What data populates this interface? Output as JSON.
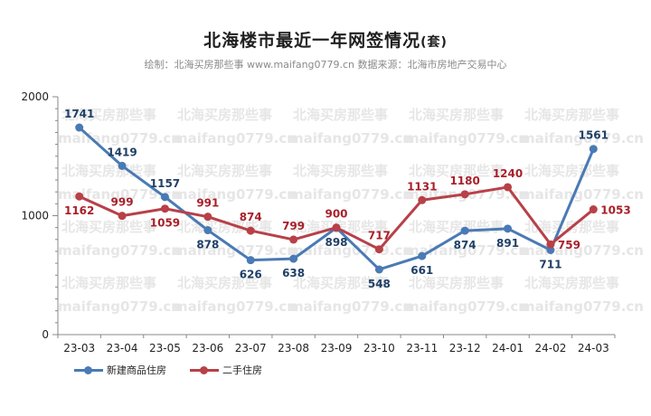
{
  "header": {
    "title": "北海楼市最近一年网签情况",
    "title_unit": "(套)",
    "subtitle": "绘制：北海买房那些事 www.maifang0779.cn  数据来源：北海市房地产交易中心"
  },
  "watermark": {
    "line1": "北海买房那些事",
    "line2": "maifang0779.cn"
  },
  "colors": {
    "series_new": "#4a7ab5",
    "series_second": "#b84048",
    "axis": "#888888",
    "watermark": "#e6e6e6"
  },
  "chart_data": {
    "type": "line",
    "title": "北海楼市最近一年网签情况(套)",
    "categories": [
      "23-03",
      "23-04",
      "23-05",
      "23-06",
      "23-07",
      "23-08",
      "23-09",
      "23-10",
      "23-11",
      "23-12",
      "24-01",
      "24-02",
      "24-03"
    ],
    "ylim": [
      0,
      2000
    ],
    "yticks": [
      0,
      1000,
      2000
    ],
    "grid": false,
    "legend_position": "bottom-left",
    "series": [
      {
        "name": "新建商品住房",
        "color": "#4a7ab5",
        "values": [
          1741,
          1419,
          1157,
          878,
          626,
          638,
          898,
          548,
          661,
          874,
          891,
          711,
          1561
        ],
        "label_pos": [
          "above",
          "above",
          "above",
          "below",
          "below",
          "below",
          "below",
          "below",
          "below",
          "below",
          "below",
          "below",
          "above"
        ]
      },
      {
        "name": "二手住房",
        "color": "#b84048",
        "values": [
          1162,
          999,
          1059,
          991,
          874,
          799,
          900,
          717,
          1131,
          1180,
          1240,
          759,
          1053
        ],
        "label_pos": [
          "below",
          "above",
          "below",
          "above",
          "above",
          "above",
          "above",
          "above",
          "above",
          "above",
          "above",
          "right",
          "right"
        ]
      }
    ]
  }
}
